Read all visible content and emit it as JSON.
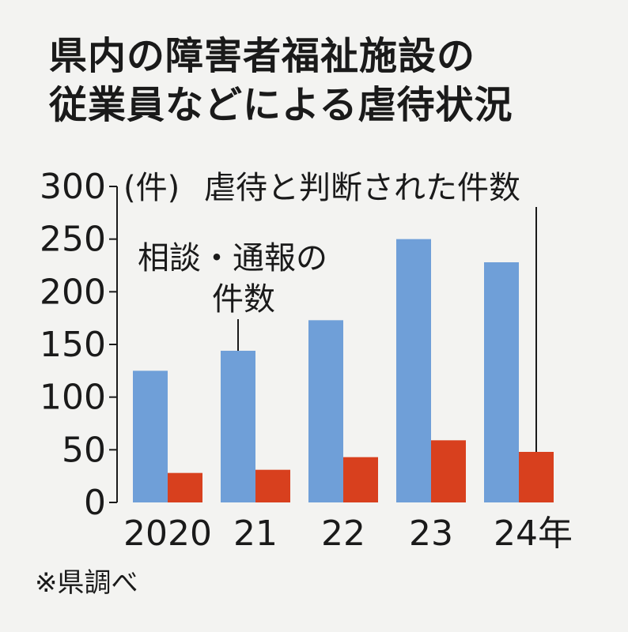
{
  "title": [
    "県内の障害者福祉施設の",
    "従業員などによる虐待状況"
  ],
  "chart_data": {
    "type": "bar",
    "categories": [
      "2020",
      "21",
      "22",
      "23",
      "24年"
    ],
    "series": [
      {
        "name": "相談・通報の件数",
        "values": [
          125,
          144,
          173,
          250,
          228
        ],
        "color": "#6f9fd8"
      },
      {
        "name": "虐待と判断された件数",
        "values": [
          28,
          31,
          43,
          59,
          48
        ],
        "color": "#d8401e"
      }
    ],
    "ylim": [
      0,
      300
    ],
    "yticks": [
      "300",
      "250",
      "200",
      "150",
      "100",
      "50",
      "0"
    ],
    "unit_label": "(件)",
    "annotations": [
      {
        "lines": [
          "相談・通報の",
          "件数"
        ],
        "target_series": 0,
        "target_category": 1
      },
      {
        "lines": [
          "虐待と判断された件数"
        ],
        "target_series": 1,
        "target_category": 4
      }
    ]
  },
  "source_note": "※県調べ"
}
